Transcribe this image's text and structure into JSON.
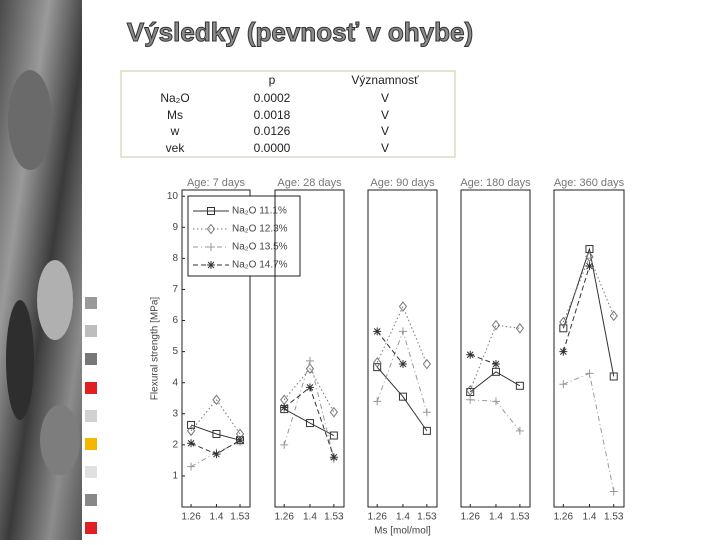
{
  "header": {
    "title": "Výsledky (pevnosť v ohybe)"
  },
  "table": {
    "columns": [
      "p",
      "Významnosť"
    ],
    "rows": [
      [
        "Na₂O",
        "0.0002",
        "V"
      ],
      [
        "Ms",
        "0.0018",
        "V"
      ],
      [
        "w",
        "0.0126",
        "V"
      ],
      [
        "vek",
        "0.0000",
        "V"
      ]
    ]
  },
  "chart_data": [
    {
      "type": "line",
      "title": "Age: 7 days",
      "y_label": "Flexural strength [MPa]",
      "x": [
        1.26,
        1.4,
        1.53
      ],
      "xticks": [
        1.26,
        1.4,
        1.53
      ],
      "xlim": [
        1.21,
        1.585
      ],
      "ylim": [
        0,
        10.2
      ],
      "yticks": [
        1,
        2,
        3,
        4,
        5,
        6,
        7,
        8,
        9,
        10
      ],
      "series": [
        {
          "name": "Na₂O 11.1%",
          "color": "#333333",
          "marker": "square",
          "dash": "solid",
          "values": [
            2.64,
            2.35,
            2.15
          ]
        },
        {
          "name": "Na₂O 12.3%",
          "color": "#777777",
          "marker": "diamond",
          "dash": "dotted",
          "values": [
            2.45,
            3.45,
            2.35
          ]
        },
        {
          "name": "Na₂O 13.5%",
          "color": "#999999",
          "marker": "plus",
          "dash": "dashdot",
          "values": [
            1.3,
            1.75,
            2.1
          ]
        },
        {
          "name": "Na₂O 14.7%",
          "color": "#333333",
          "marker": "star",
          "dash": "dashed",
          "values": [
            2.05,
            1.7,
            2.15
          ]
        }
      ]
    },
    {
      "type": "line",
      "title": "Age: 28 days",
      "x": [
        1.26,
        1.4,
        1.53
      ],
      "xticks": [
        1.26,
        1.4,
        1.53
      ],
      "xlim": [
        1.21,
        1.585
      ],
      "ylim": [
        0,
        10.2
      ],
      "series": [
        {
          "color": "#333333",
          "marker": "square",
          "dash": "solid",
          "values": [
            3.15,
            2.7,
            2.3
          ]
        },
        {
          "color": "#777777",
          "marker": "diamond",
          "dash": "dotted",
          "values": [
            3.45,
            4.45,
            3.05
          ]
        },
        {
          "color": "#999999",
          "marker": "plus",
          "dash": "dashdot",
          "values": [
            2.0,
            4.7,
            1.55
          ]
        },
        {
          "color": "#333333",
          "marker": "star",
          "dash": "dashed",
          "values": [
            3.2,
            3.85,
            1.6
          ]
        }
      ]
    },
    {
      "type": "line",
      "title": "Age: 90 days",
      "x_label": "Ms [mol/mol]",
      "x": [
        1.26,
        1.4,
        1.53
      ],
      "xticks": [
        1.26,
        1.4,
        1.53
      ],
      "xlim": [
        1.21,
        1.585
      ],
      "ylim": [
        0,
        10.2
      ],
      "series": [
        {
          "color": "#333333",
          "marker": "square",
          "dash": "solid",
          "values": [
            4.5,
            3.55,
            2.45
          ]
        },
        {
          "color": "#777777",
          "marker": "diamond",
          "dash": "dotted",
          "values": [
            4.65,
            6.45,
            4.6
          ]
        },
        {
          "color": "#999999",
          "marker": "plus",
          "dash": "dashdot",
          "values": [
            3.4,
            5.65,
            3.05
          ]
        },
        {
          "color": "#333333",
          "marker": "star",
          "dash": "dashed",
          "values": [
            5.65,
            4.6,
            null
          ]
        }
      ]
    },
    {
      "type": "line",
      "title": "Age: 180 days",
      "x": [
        1.26,
        1.4,
        1.53
      ],
      "xticks": [
        1.26,
        1.4,
        1.53
      ],
      "xlim": [
        1.21,
        1.585
      ],
      "ylim": [
        0,
        10.2
      ],
      "series": [
        {
          "color": "#333333",
          "marker": "square",
          "dash": "solid",
          "values": [
            3.7,
            4.35,
            3.9
          ]
        },
        {
          "color": "#777777",
          "marker": "diamond",
          "dash": "dotted",
          "values": [
            3.75,
            5.85,
            5.75
          ]
        },
        {
          "color": "#999999",
          "marker": "plus",
          "dash": "dashdot",
          "values": [
            3.45,
            3.4,
            2.45
          ]
        },
        {
          "color": "#333333",
          "marker": "star",
          "dash": "dashed",
          "values": [
            4.9,
            4.6,
            null
          ]
        }
      ]
    },
    {
      "type": "line",
      "title": "Age: 360 days",
      "x": [
        1.26,
        1.4,
        1.53
      ],
      "xticks": [
        1.26,
        1.4,
        1.53
      ],
      "xlim": [
        1.21,
        1.585
      ],
      "ylim": [
        0,
        10.2
      ],
      "series": [
        {
          "color": "#333333",
          "marker": "square",
          "dash": "solid",
          "values": [
            5.75,
            8.3,
            4.2
          ]
        },
        {
          "color": "#777777",
          "marker": "diamond",
          "dash": "dotted",
          "values": [
            5.95,
            8.05,
            6.15
          ]
        },
        {
          "color": "#999999",
          "marker": "plus",
          "dash": "dashdot",
          "values": [
            3.95,
            4.3,
            0.5
          ]
        },
        {
          "color": "#333333",
          "marker": "star",
          "dash": "dashed",
          "values": [
            5.0,
            7.75,
            null
          ]
        }
      ]
    }
  ]
}
